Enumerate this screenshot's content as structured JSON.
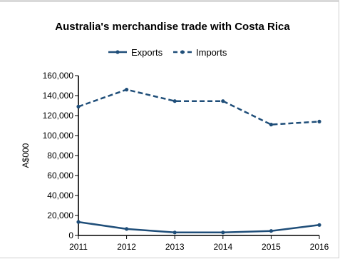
{
  "chart_data": {
    "type": "line",
    "title": "Australia's merchandise trade with Costa Rica",
    "xlabel": "",
    "ylabel": "A$000",
    "x": [
      "2011",
      "2012",
      "2013",
      "2014",
      "2015",
      "2016"
    ],
    "ylim": [
      0,
      160000
    ],
    "yticks": [
      "0",
      "20,000",
      "40,000",
      "60,000",
      "80,000",
      "100,000",
      "120,000",
      "140,000",
      "160,000"
    ],
    "legend_position": "top-center",
    "grid": false,
    "series": [
      {
        "name": "Exports",
        "style": "solid",
        "color": "#1f4e79",
        "values": [
          13500,
          6500,
          3000,
          3000,
          4500,
          10500
        ]
      },
      {
        "name": "Imports",
        "style": "dashed",
        "color": "#1f4e79",
        "values": [
          129000,
          146000,
          134500,
          134500,
          111000,
          114000
        ]
      }
    ]
  }
}
